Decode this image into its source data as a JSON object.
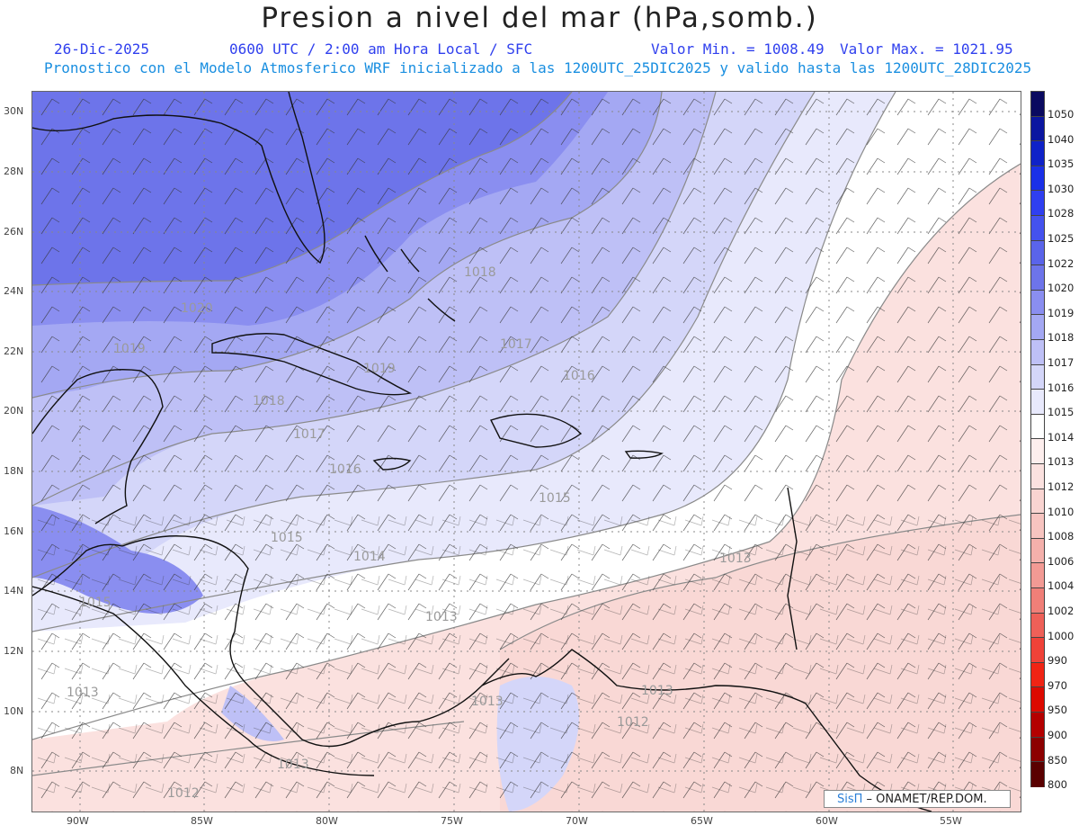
{
  "header": {
    "title": "Presion a nivel del mar (hPa,somb.)",
    "date": "26-Dic-2025",
    "time_info": "0600 UTC / 2:00 am Hora Local / SFC",
    "min_label": "Valor Min. = 1008.49",
    "max_label": "Valor Max. = 1021.95",
    "model_info": "Pronostico con el Modelo Atmosferico WRF inicializado a las 1200UTC_25DIC2025 y valido hasta las  1200UTC_28DIC2025"
  },
  "axes": {
    "lat_labels": [
      "30N",
      "28N",
      "26N",
      "24N",
      "22N",
      "20N",
      "18N",
      "16N",
      "14N",
      "12N",
      "10N",
      "8N"
    ],
    "lon_labels": [
      "90W",
      "85W",
      "80W",
      "75W",
      "70W",
      "65W",
      "60W",
      "55W"
    ]
  },
  "colorbar": {
    "levels": [
      "1050",
      "1040",
      "1035",
      "1030",
      "1028",
      "1025",
      "1022",
      "1020",
      "1019",
      "1018",
      "1017",
      "1016",
      "1015",
      "1014",
      "1013",
      "1012",
      "1010",
      "1008",
      "1006",
      "1004",
      "1002",
      "1000",
      "990",
      "970",
      "950",
      "900",
      "850",
      "800"
    ],
    "colors": [
      "#0a0a60",
      "#0b16a0",
      "#0f22c8",
      "#1a30e8",
      "#2f3ff0",
      "#4452ee",
      "#5a64ea",
      "#6d74ea",
      "#8a8ef0",
      "#a4a8f3",
      "#bec0f6",
      "#d4d6f9",
      "#e8e9fc",
      "#ffffff",
      "#fdeeed",
      "#fbe1df",
      "#f9d4d1",
      "#f7c4c0",
      "#f4b0ab",
      "#f29a94",
      "#f07f78",
      "#ee6058",
      "#ef4238",
      "#f02414",
      "#dc0a00",
      "#b40000",
      "#8c0000",
      "#5a0000"
    ]
  },
  "contour_labels": [
    {
      "text": "1020"
    },
    {
      "text": "1019"
    },
    {
      "text": "1018"
    },
    {
      "text": "1018"
    },
    {
      "text": "1017"
    },
    {
      "text": "1017"
    },
    {
      "text": "1016"
    },
    {
      "text": "1016"
    },
    {
      "text": "1015"
    },
    {
      "text": "1015"
    },
    {
      "text": "1015"
    },
    {
      "text": "1014"
    },
    {
      "text": "1013"
    },
    {
      "text": "1013"
    },
    {
      "text": "1013"
    },
    {
      "text": "1013"
    },
    {
      "text": "1013"
    },
    {
      "text": "1013"
    },
    {
      "text": "1012"
    },
    {
      "text": "1012"
    },
    {
      "text": "1019"
    }
  ],
  "credit": {
    "sis": "SisΠ",
    "rest": " – ONAMET/REP.DOM."
  },
  "colors": {
    "high": "#5a64ea",
    "neutral": "#ffffff",
    "low": "#fbe1df",
    "contour": "#8a8a8a",
    "coast": "#111111"
  }
}
